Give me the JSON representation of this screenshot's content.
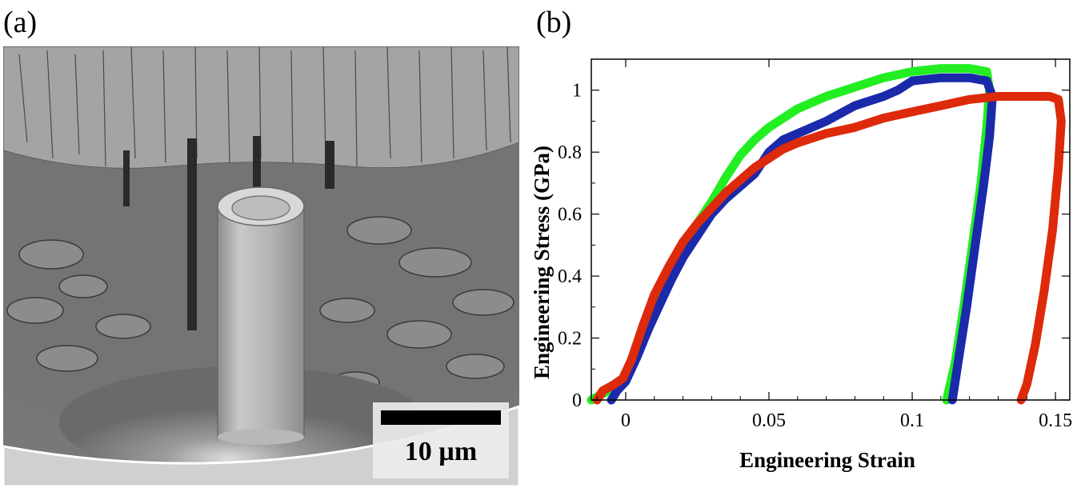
{
  "panels": {
    "a_label": "(a)",
    "b_label": "(b)"
  },
  "micrograph": {
    "scale_bar_label": "10 µm"
  },
  "chart_data": {
    "type": "line",
    "title": "",
    "xlabel": "Engineering Strain",
    "ylabel": "Engineering Stress  (GPa)",
    "xlim": [
      -0.012,
      0.155
    ],
    "ylim": [
      0,
      1.1
    ],
    "xticks": [
      0,
      0.05,
      0.1,
      0.15
    ],
    "xtick_labels": [
      "0",
      "0.05",
      "0.1",
      "0.15"
    ],
    "yticks": [
      0,
      0.2,
      0.4,
      0.6,
      0.8,
      1.0
    ],
    "ytick_labels": [
      "0",
      "0.2",
      "0.4",
      "0.6",
      "0.8",
      "1"
    ],
    "grid": false,
    "series": [
      {
        "color": "#22ee22",
        "points": [
          [
            -0.012,
            0.0
          ],
          [
            -0.006,
            0.03
          ],
          [
            -0.002,
            0.05
          ],
          [
            0.002,
            0.12
          ],
          [
            0.006,
            0.24
          ],
          [
            0.01,
            0.33
          ],
          [
            0.015,
            0.42
          ],
          [
            0.02,
            0.5
          ],
          [
            0.025,
            0.57
          ],
          [
            0.03,
            0.64
          ],
          [
            0.035,
            0.72
          ],
          [
            0.04,
            0.79
          ],
          [
            0.045,
            0.84
          ],
          [
            0.05,
            0.88
          ],
          [
            0.06,
            0.94
          ],
          [
            0.07,
            0.98
          ],
          [
            0.08,
            1.01
          ],
          [
            0.09,
            1.04
          ],
          [
            0.1,
            1.06
          ],
          [
            0.11,
            1.07
          ],
          [
            0.12,
            1.07
          ],
          [
            0.126,
            1.06
          ],
          [
            0.127,
            1.0
          ],
          [
            0.126,
            0.88
          ],
          [
            0.124,
            0.7
          ],
          [
            0.121,
            0.5
          ],
          [
            0.118,
            0.3
          ],
          [
            0.115,
            0.12
          ],
          [
            0.112,
            0.0
          ]
        ]
      },
      {
        "color": "#1a2aaa",
        "points": [
          [
            -0.005,
            0.0
          ],
          [
            -0.003,
            0.03
          ],
          [
            0.0,
            0.06
          ],
          [
            0.004,
            0.14
          ],
          [
            0.008,
            0.23
          ],
          [
            0.012,
            0.31
          ],
          [
            0.016,
            0.39
          ],
          [
            0.02,
            0.46
          ],
          [
            0.025,
            0.53
          ],
          [
            0.03,
            0.6
          ],
          [
            0.035,
            0.65
          ],
          [
            0.04,
            0.69
          ],
          [
            0.045,
            0.73
          ],
          [
            0.05,
            0.8
          ],
          [
            0.055,
            0.84
          ],
          [
            0.06,
            0.86
          ],
          [
            0.07,
            0.9
          ],
          [
            0.08,
            0.95
          ],
          [
            0.09,
            0.98
          ],
          [
            0.095,
            1.0
          ],
          [
            0.1,
            1.03
          ],
          [
            0.11,
            1.04
          ],
          [
            0.12,
            1.04
          ],
          [
            0.126,
            1.03
          ],
          [
            0.128,
            0.98
          ],
          [
            0.127,
            0.85
          ],
          [
            0.125,
            0.7
          ],
          [
            0.122,
            0.5
          ],
          [
            0.119,
            0.3
          ],
          [
            0.116,
            0.12
          ],
          [
            0.114,
            0.0
          ]
        ]
      },
      {
        "color": "#dd2a0a",
        "points": [
          [
            -0.01,
            0.0
          ],
          [
            -0.008,
            0.03
          ],
          [
            -0.004,
            0.05
          ],
          [
            -0.001,
            0.07
          ],
          [
            0.002,
            0.13
          ],
          [
            0.006,
            0.24
          ],
          [
            0.01,
            0.34
          ],
          [
            0.015,
            0.43
          ],
          [
            0.02,
            0.51
          ],
          [
            0.025,
            0.57
          ],
          [
            0.03,
            0.62
          ],
          [
            0.035,
            0.67
          ],
          [
            0.04,
            0.71
          ],
          [
            0.045,
            0.75
          ],
          [
            0.05,
            0.78
          ],
          [
            0.055,
            0.81
          ],
          [
            0.06,
            0.83
          ],
          [
            0.07,
            0.86
          ],
          [
            0.08,
            0.88
          ],
          [
            0.09,
            0.91
          ],
          [
            0.1,
            0.93
          ],
          [
            0.11,
            0.95
          ],
          [
            0.12,
            0.97
          ],
          [
            0.13,
            0.98
          ],
          [
            0.14,
            0.98
          ],
          [
            0.148,
            0.98
          ],
          [
            0.151,
            0.97
          ],
          [
            0.152,
            0.9
          ],
          [
            0.151,
            0.75
          ],
          [
            0.149,
            0.55
          ],
          [
            0.146,
            0.35
          ],
          [
            0.143,
            0.18
          ],
          [
            0.14,
            0.05
          ],
          [
            0.138,
            0.0
          ]
        ]
      }
    ]
  }
}
